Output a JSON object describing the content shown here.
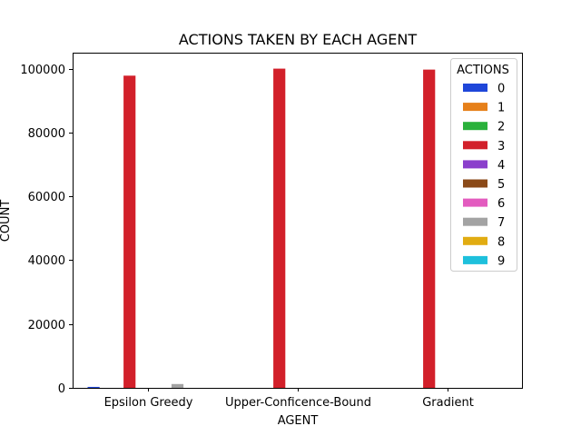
{
  "chart_data": {
    "type": "bar",
    "title": "ACTIONS TAKEN BY EACH AGENT",
    "xlabel": "AGENT",
    "ylabel": "COUNT",
    "categories": [
      "Epsilon Greedy",
      "Upper-Conficence-Bound",
      "Gradient"
    ],
    "ylim": [
      0,
      105000
    ],
    "yticks": [
      0,
      20000,
      40000,
      60000,
      80000,
      100000
    ],
    "grid": false,
    "legend": {
      "title": "ACTIONS",
      "placement": "top-right"
    },
    "series": [
      {
        "name": "0",
        "color": "#1f46d9",
        "values": [
          300,
          0,
          0
        ]
      },
      {
        "name": "1",
        "color": "#e6801a",
        "values": [
          0,
          0,
          0
        ]
      },
      {
        "name": "2",
        "color": "#2ab13b",
        "values": [
          0,
          0,
          0
        ]
      },
      {
        "name": "3",
        "color": "#d2202a",
        "values": [
          97800,
          100000,
          99700
        ]
      },
      {
        "name": "4",
        "color": "#8b3fcc",
        "values": [
          0,
          0,
          0
        ]
      },
      {
        "name": "5",
        "color": "#8b4a18",
        "values": [
          0,
          0,
          0
        ]
      },
      {
        "name": "6",
        "color": "#e35bbf",
        "values": [
          0,
          0,
          0
        ]
      },
      {
        "name": "7",
        "color": "#a3a3a3",
        "values": [
          1200,
          0,
          0
        ]
      },
      {
        "name": "8",
        "color": "#e1ac12",
        "values": [
          0,
          0,
          0
        ]
      },
      {
        "name": "9",
        "color": "#1ec0dc",
        "values": [
          0,
          0,
          0
        ]
      }
    ]
  }
}
